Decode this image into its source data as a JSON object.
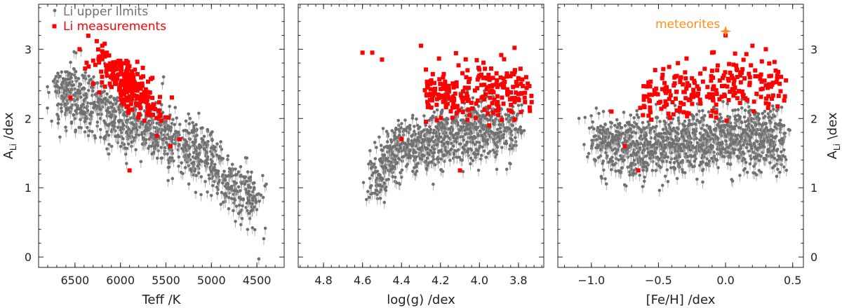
{
  "colors": {
    "upper_limit": "#707070",
    "arrow": "#a8a8a8",
    "measurement": "#ff0000",
    "meteorite": "#ff8c1a"
  },
  "chart_data": [
    {
      "type": "scatter",
      "xlabel": "Teff /K",
      "ylabel": "A_Li /dex",
      "xlim": [
        6900,
        4200
      ],
      "ylim": [
        -0.15,
        3.65
      ],
      "xticks": [
        6500,
        6000,
        5500,
        5000,
        4500
      ],
      "yticks": [
        0,
        1,
        2,
        3
      ],
      "legend": {
        "placement": "top-left",
        "entries": [
          {
            "label": "Li upper limits",
            "marker": "dot-with-arrow",
            "color": "#707070"
          },
          {
            "label": "Li measurements",
            "marker": "square",
            "color": "#ff0000"
          }
        ]
      },
      "series": [
        {
          "name": "Li upper limits",
          "marker": "dot-with-arrow",
          "color": "#707070",
          "trend": {
            "x": [
              6700,
              6300,
              5900,
              5500,
              5100,
              4700,
              4500
            ],
            "y": [
              2.4,
              2.2,
              1.95,
              1.75,
              1.45,
              1.0,
              0.8
            ]
          }
        },
        {
          "name": "Li measurements",
          "marker": "square",
          "color": "#ff0000",
          "points": [
            [
              6450,
              3.0
            ],
            [
              6200,
              3.05
            ],
            [
              6150,
              2.95
            ],
            [
              6350,
              2.75
            ],
            [
              5900,
              1.25
            ],
            [
              5350,
              1.7
            ],
            [
              5450,
              1.6
            ],
            [
              5600,
              1.75
            ],
            [
              6300,
              2.5
            ],
            [
              6550,
              2.3
            ]
          ]
        }
      ]
    },
    {
      "type": "scatter",
      "xlabel": "log(g) /dex",
      "ylabel": "",
      "xlim": [
        4.93,
        3.67
      ],
      "ylim": [
        -0.15,
        3.65
      ],
      "xticks": [
        4.8,
        4.6,
        4.4,
        4.2,
        4.0,
        3.8
      ],
      "yticks": [
        0,
        1,
        2,
        3
      ],
      "series": [
        {
          "name": "Li upper limits",
          "marker": "dot-with-arrow",
          "color": "#707070",
          "trend": {
            "x": [
              4.55,
              4.4,
              4.2,
              4.0,
              3.8
            ],
            "y": [
              1.2,
              1.55,
              1.75,
              1.85,
              1.85
            ]
          }
        },
        {
          "name": "Li measurements",
          "marker": "square",
          "color": "#ff0000",
          "points": [
            [
              4.6,
              2.95
            ],
            [
              4.55,
              2.95
            ],
            [
              4.5,
              2.85
            ],
            [
              4.3,
              3.05
            ],
            [
              4.4,
              1.7
            ],
            [
              4.1,
              1.25
            ],
            [
              3.82,
              3.02
            ],
            [
              4.05,
              2.05
            ],
            [
              3.95,
              1.9
            ]
          ]
        }
      ]
    },
    {
      "type": "scatter",
      "xlabel": "[Fe/H] /dex",
      "ylabel": "A_Li \\dex",
      "xlim": [
        -1.25,
        0.58
      ],
      "ylim": [
        -0.15,
        3.65
      ],
      "xticks": [
        -1.0,
        -0.5,
        0.0,
        0.5
      ],
      "yticks": [
        0,
        1,
        2,
        3
      ],
      "annotations": [
        {
          "text": "meteorites",
          "x": 0.0,
          "y": 3.26,
          "marker": "star",
          "color": "#ff8c1a"
        }
      ],
      "series": [
        {
          "name": "Li upper limits",
          "marker": "dot-with-arrow",
          "color": "#707070",
          "trend": {
            "x": [
              -1.0,
              -0.5,
              0.0,
              0.4
            ],
            "y": [
              1.65,
              1.6,
              1.75,
              1.7
            ]
          }
        },
        {
          "name": "Li measurements",
          "marker": "square",
          "color": "#ff0000",
          "points": [
            [
              -0.85,
              2.1
            ],
            [
              -0.65,
              1.25
            ],
            [
              -0.75,
              1.6
            ],
            [
              0.2,
              3.05
            ],
            [
              0.3,
              3.0
            ],
            [
              0.45,
              2.55
            ],
            [
              -0.1,
              2.95
            ],
            [
              0.0,
              3.2
            ]
          ]
        }
      ]
    }
  ],
  "legend": {
    "upper_limits_label": "Li upper limits",
    "measurements_label": "Li measurements"
  },
  "annotation": {
    "meteorites_label": "meteorites"
  }
}
